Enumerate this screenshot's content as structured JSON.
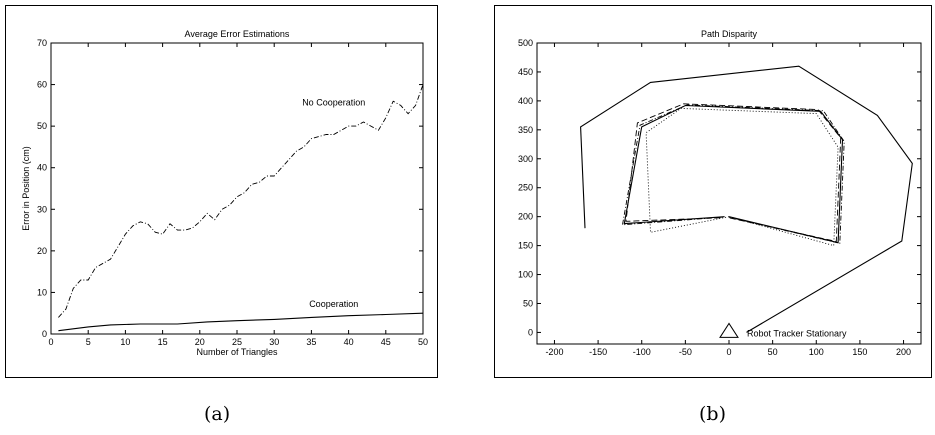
{
  "captions": [
    "(a)",
    "(b)"
  ],
  "chart_data": [
    {
      "type": "line",
      "title": "Average Error Estimations",
      "xlabel": "Number of Triangles",
      "ylabel": "Error in Position (cm)",
      "xlim": [
        0,
        50
      ],
      "ylim": [
        0,
        70
      ],
      "xticks": [
        0,
        5,
        10,
        15,
        20,
        25,
        30,
        35,
        40,
        45,
        50
      ],
      "yticks": [
        0,
        10,
        20,
        30,
        40,
        50,
        60,
        70
      ],
      "grid": false,
      "annotations": [
        {
          "text": "No Cooperation",
          "x": 38,
          "y": 55
        },
        {
          "text": "Cooperation",
          "x": 38,
          "y": 6.5
        }
      ],
      "series": [
        {
          "style": "dashdot",
          "x": [
            1,
            2,
            3,
            4,
            5,
            6,
            7,
            8,
            9,
            10,
            11,
            12,
            13,
            14,
            15,
            16,
            17,
            18,
            19,
            20,
            21,
            22,
            23,
            24,
            25,
            26,
            27,
            28,
            29,
            30,
            31,
            32,
            33,
            34,
            35,
            36,
            37,
            38,
            39,
            40,
            41,
            42,
            43,
            44,
            45,
            46,
            47,
            48,
            49,
            50
          ],
          "y": [
            4,
            6,
            11,
            13,
            13,
            16,
            17,
            18,
            21,
            24,
            26,
            27,
            26.5,
            24.5,
            24,
            26.5,
            25,
            25,
            25.5,
            27,
            29,
            27.5,
            30,
            31,
            33,
            34,
            36,
            36.5,
            38,
            38,
            40,
            42,
            44,
            45,
            47,
            47.5,
            48,
            48,
            49,
            50,
            50,
            51,
            50,
            49,
            52,
            56,
            55,
            53,
            55,
            60
          ]
        },
        {
          "style": "solid",
          "x": [
            1,
            5,
            8,
            12,
            17,
            21,
            25,
            30,
            35,
            40,
            45,
            50
          ],
          "y": [
            0.8,
            1.7,
            2.2,
            2.4,
            2.4,
            2.9,
            3.2,
            3.5,
            4.0,
            4.4,
            4.7,
            5.0
          ]
        }
      ]
    },
    {
      "type": "line",
      "title": "Path Disparity",
      "xlabel": "",
      "ylabel": "",
      "xlim": [
        -220,
        220
      ],
      "ylim": [
        -20,
        500
      ],
      "xticks": [
        -200,
        -150,
        -100,
        -50,
        0,
        50,
        100,
        150,
        200
      ],
      "yticks": [
        0,
        50,
        100,
        150,
        200,
        250,
        300,
        350,
        400,
        450,
        500
      ],
      "grid": false,
      "legend": [
        {
          "marker": "triangle",
          "text": "Robot Tracker Stationary",
          "x": 0,
          "y": 0
        }
      ],
      "series": [
        {
          "style": "solid",
          "points": [
            [
              -165,
              180
            ],
            [
              -170,
              355
            ],
            [
              -90,
              432
            ],
            [
              80,
              460
            ],
            [
              170,
              375
            ],
            [
              210,
              292
            ],
            [
              198,
              158
            ],
            [
              20,
              0
            ]
          ]
        },
        {
          "style": "solid",
          "points": [
            [
              -5,
              200
            ],
            [
              -120,
              188
            ],
            [
              -100,
              355
            ],
            [
              -50,
              392
            ],
            [
              105,
              382
            ],
            [
              130,
              333
            ],
            [
              125,
              155
            ],
            [
              0,
              200
            ]
          ]
        },
        {
          "style": "dashed",
          "points": [
            [
              -10,
              198
            ],
            [
              -118,
              192
            ],
            [
              -105,
              362
            ],
            [
              -52,
              395
            ],
            [
              102,
              385
            ],
            [
              128,
              336
            ],
            [
              123,
              157
            ],
            [
              0,
              198
            ]
          ]
        },
        {
          "style": "dashdot",
          "points": [
            [
              -8,
              199
            ],
            [
              -122,
              186
            ],
            [
              -102,
              358
            ],
            [
              -48,
              393
            ],
            [
              108,
              383
            ],
            [
              132,
              330
            ],
            [
              127,
              154
            ],
            [
              0,
              199
            ]
          ]
        },
        {
          "style": "dotted",
          "points": [
            [
              0,
              200
            ],
            [
              -90,
              173
            ],
            [
              -95,
              345
            ],
            [
              -55,
              387
            ],
            [
              100,
              378
            ],
            [
              125,
              320
            ],
            [
              120,
              150
            ],
            [
              0,
              200
            ]
          ]
        }
      ]
    }
  ]
}
